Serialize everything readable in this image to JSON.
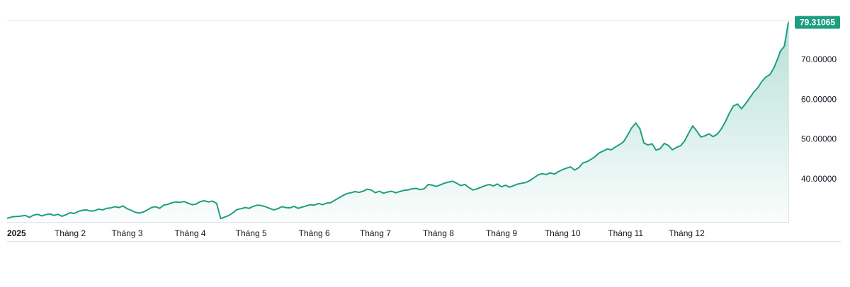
{
  "chart_data": {
    "type": "area",
    "colors": {
      "line": "#1e9e80",
      "fill_top": "#1e9e80",
      "badge": "#1e9e80",
      "border": "#e0e3eb"
    },
    "x_ticks": [
      "2025",
      "Tháng 2",
      "Tháng 3",
      "Tháng 4",
      "Tháng 5",
      "Tháng 6",
      "Tháng 7",
      "Tháng 8",
      "Tháng 9",
      "Tháng 10",
      "Tháng 11",
      "Tháng 12"
    ],
    "y_ticks": [
      "40.00000",
      "50.00000",
      "60.00000",
      "70.00000"
    ],
    "y_tick_values": [
      40,
      50,
      60,
      70
    ],
    "ylim": [
      30,
      80
    ],
    "last_value_label": "79.31065",
    "last_value": 79.31065,
    "grid": false,
    "legend": "none",
    "x_unit": "days since 2025-01-01",
    "points": [
      [
        0,
        30.1
      ],
      [
        3,
        30.5
      ],
      [
        6,
        30.6
      ],
      [
        9,
        30.8
      ],
      [
        11,
        30.3
      ],
      [
        13,
        30.9
      ],
      [
        15,
        31.1
      ],
      [
        17,
        30.7
      ],
      [
        19,
        31.0
      ],
      [
        21,
        31.2
      ],
      [
        23,
        30.8
      ],
      [
        25,
        31.1
      ],
      [
        27,
        30.6
      ],
      [
        29,
        31.0
      ],
      [
        31,
        31.5
      ],
      [
        33,
        31.3
      ],
      [
        35,
        31.8
      ],
      [
        37,
        32.1
      ],
      [
        39,
        32.2
      ],
      [
        41,
        31.9
      ],
      [
        43,
        32.0
      ],
      [
        45,
        32.4
      ],
      [
        47,
        32.2
      ],
      [
        49,
        32.6
      ],
      [
        51,
        32.7
      ],
      [
        53,
        33.0
      ],
      [
        55,
        32.8
      ],
      [
        57,
        33.2
      ],
      [
        59,
        32.5
      ],
      [
        61,
        32.1
      ],
      [
        63,
        31.6
      ],
      [
        65,
        31.4
      ],
      [
        67,
        31.7
      ],
      [
        69,
        32.2
      ],
      [
        71,
        32.8
      ],
      [
        73,
        33.0
      ],
      [
        75,
        32.6
      ],
      [
        77,
        33.4
      ],
      [
        79,
        33.6
      ],
      [
        81,
        34.0
      ],
      [
        83,
        34.2
      ],
      [
        85,
        34.1
      ],
      [
        87,
        34.3
      ],
      [
        89,
        33.9
      ],
      [
        91,
        33.5
      ],
      [
        93,
        33.7
      ],
      [
        95,
        34.3
      ],
      [
        97,
        34.5
      ],
      [
        99,
        34.2
      ],
      [
        101,
        34.4
      ],
      [
        103,
        33.8
      ],
      [
        105,
        30.0
      ],
      [
        107,
        30.4
      ],
      [
        109,
        30.8
      ],
      [
        111,
        31.5
      ],
      [
        113,
        32.3
      ],
      [
        115,
        32.5
      ],
      [
        117,
        32.8
      ],
      [
        119,
        32.6
      ],
      [
        121,
        33.1
      ],
      [
        123,
        33.4
      ],
      [
        125,
        33.3
      ],
      [
        127,
        33.0
      ],
      [
        129,
        32.6
      ],
      [
        131,
        32.2
      ],
      [
        133,
        32.5
      ],
      [
        135,
        33.0
      ],
      [
        137,
        32.8
      ],
      [
        139,
        32.7
      ],
      [
        141,
        33.1
      ],
      [
        143,
        32.6
      ],
      [
        145,
        32.9
      ],
      [
        147,
        33.2
      ],
      [
        149,
        33.5
      ],
      [
        151,
        33.4
      ],
      [
        153,
        33.8
      ],
      [
        155,
        33.5
      ],
      [
        157,
        33.9
      ],
      [
        159,
        34.0
      ],
      [
        161,
        34.6
      ],
      [
        163,
        35.2
      ],
      [
        165,
        35.8
      ],
      [
        167,
        36.3
      ],
      [
        169,
        36.5
      ],
      [
        171,
        36.8
      ],
      [
        173,
        36.6
      ],
      [
        175,
        36.9
      ],
      [
        177,
        37.4
      ],
      [
        179,
        37.2
      ],
      [
        181,
        36.5
      ],
      [
        183,
        36.9
      ],
      [
        185,
        36.4
      ],
      [
        187,
        36.7
      ],
      [
        189,
        36.9
      ],
      [
        191,
        36.5
      ],
      [
        193,
        36.8
      ],
      [
        195,
        37.1
      ],
      [
        197,
        37.2
      ],
      [
        199,
        37.5
      ],
      [
        201,
        37.6
      ],
      [
        203,
        37.3
      ],
      [
        205,
        37.5
      ],
      [
        207,
        38.6
      ],
      [
        209,
        38.4
      ],
      [
        211,
        38.1
      ],
      [
        213,
        38.5
      ],
      [
        215,
        38.9
      ],
      [
        217,
        39.2
      ],
      [
        219,
        39.4
      ],
      [
        221,
        38.9
      ],
      [
        223,
        38.3
      ],
      [
        225,
        38.6
      ],
      [
        227,
        37.8
      ],
      [
        229,
        37.2
      ],
      [
        231,
        37.5
      ],
      [
        233,
        37.9
      ],
      [
        235,
        38.3
      ],
      [
        237,
        38.6
      ],
      [
        239,
        38.2
      ],
      [
        241,
        38.7
      ],
      [
        243,
        38.0
      ],
      [
        245,
        38.4
      ],
      [
        247,
        37.9
      ],
      [
        249,
        38.3
      ],
      [
        251,
        38.7
      ],
      [
        253,
        38.9
      ],
      [
        255,
        39.1
      ],
      [
        257,
        39.6
      ],
      [
        259,
        40.3
      ],
      [
        261,
        41.0
      ],
      [
        263,
        41.3
      ],
      [
        265,
        41.1
      ],
      [
        267,
        41.5
      ],
      [
        269,
        41.2
      ],
      [
        271,
        41.8
      ],
      [
        273,
        42.3
      ],
      [
        275,
        42.7
      ],
      [
        277,
        43.0
      ],
      [
        279,
        42.2
      ],
      [
        281,
        42.8
      ],
      [
        283,
        44.0
      ],
      [
        285,
        44.3
      ],
      [
        287,
        44.9
      ],
      [
        289,
        45.6
      ],
      [
        291,
        46.5
      ],
      [
        293,
        47.0
      ],
      [
        295,
        47.5
      ],
      [
        297,
        47.3
      ],
      [
        299,
        48.0
      ],
      [
        301,
        48.6
      ],
      [
        303,
        49.3
      ],
      [
        305,
        51.0
      ],
      [
        307,
        52.8
      ],
      [
        309,
        54.0
      ],
      [
        311,
        52.6
      ],
      [
        313,
        49.0
      ],
      [
        315,
        48.5
      ],
      [
        317,
        48.8
      ],
      [
        319,
        47.2
      ],
      [
        321,
        47.6
      ],
      [
        323,
        48.9
      ],
      [
        325,
        48.4
      ],
      [
        327,
        47.3
      ],
      [
        329,
        47.9
      ],
      [
        331,
        48.3
      ],
      [
        333,
        49.5
      ],
      [
        335,
        51.5
      ],
      [
        337,
        53.3
      ],
      [
        339,
        52.0
      ],
      [
        341,
        50.5
      ],
      [
        343,
        50.8
      ],
      [
        345,
        51.3
      ],
      [
        347,
        50.6
      ],
      [
        349,
        51.2
      ],
      [
        351,
        52.5
      ],
      [
        353,
        54.3
      ],
      [
        355,
        56.5
      ],
      [
        357,
        58.3
      ],
      [
        359,
        58.8
      ],
      [
        361,
        57.6
      ],
      [
        363,
        58.9
      ],
      [
        365,
        60.3
      ],
      [
        367,
        61.8
      ],
      [
        369,
        62.9
      ],
      [
        371,
        64.5
      ],
      [
        373,
        65.6
      ],
      [
        375,
        66.2
      ],
      [
        377,
        68.0
      ],
      [
        379,
        70.5
      ],
      [
        380,
        72.0
      ],
      [
        382,
        73.3
      ],
      [
        384,
        79.3
      ]
    ]
  }
}
